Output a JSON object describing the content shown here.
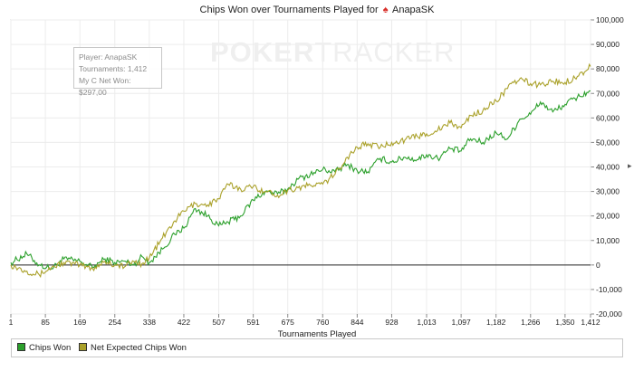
{
  "chart_data": {
    "type": "line",
    "title": "Chips Won over Tournaments Played for",
    "player_badge_icon": "pokerstars-logo-icon",
    "player_name": "AnapaSK",
    "xlabel": "Tournaments Played",
    "ylabel": "",
    "xlim": [
      1,
      1412
    ],
    "ylim": [
      -20000,
      100000
    ],
    "x_ticks": [
      1,
      85,
      169,
      254,
      338,
      422,
      507,
      591,
      675,
      760,
      844,
      928,
      1013,
      1097,
      1182,
      1266,
      1350,
      1412
    ],
    "x_tick_labels": [
      "1",
      "85",
      "169",
      "254",
      "338",
      "422",
      "507",
      "591",
      "675",
      "760",
      "844",
      "928",
      "1,013",
      "1,097",
      "1,182",
      "1,266",
      "1,350",
      "1,412"
    ],
    "y_ticks": [
      -20000,
      -10000,
      0,
      10000,
      20000,
      30000,
      40000,
      50000,
      60000,
      70000,
      80000,
      90000,
      100000
    ],
    "y_tick_labels": [
      "-20,000",
      "-10,000",
      "0",
      "10,000",
      "20,000",
      "30,000",
      "40,000",
      "50,000",
      "60,000",
      "70,000",
      "80,000",
      "90,000",
      "100,000"
    ],
    "grid": true,
    "legend_position": "bottom",
    "series": [
      {
        "name": "Chips Won",
        "color": "#2ca02c",
        "x": [
          1,
          40,
          70,
          100,
          130,
          169,
          200,
          230,
          254,
          280,
          300,
          320,
          338,
          370,
          400,
          422,
          450,
          480,
          507,
          530,
          560,
          591,
          620,
          650,
          675,
          700,
          730,
          760,
          790,
          820,
          844,
          870,
          900,
          928,
          960,
          990,
          1013,
          1040,
          1070,
          1097,
          1120,
          1150,
          1182,
          1210,
          1240,
          1266,
          1290,
          1320,
          1350,
          1380,
          1412
        ],
        "y": [
          1000,
          4500,
          0,
          -1500,
          2500,
          1500,
          -1000,
          2500,
          1000,
          1500,
          0,
          3500,
          1000,
          6500,
          12500,
          15000,
          23000,
          20000,
          16000,
          17500,
          20000,
          26500,
          30000,
          29000,
          31000,
          35000,
          37000,
          39000,
          38000,
          41000,
          38500,
          38000,
          43500,
          42000,
          44000,
          43000,
          45000,
          43500,
          47500,
          46500,
          51500,
          50000,
          54000,
          51500,
          59500,
          61500,
          66500,
          62500,
          65500,
          68500,
          71000
        ]
      },
      {
        "name": "Net Expected Chips Won",
        "color": "#aaa12a",
        "x": [
          1,
          40,
          70,
          100,
          130,
          169,
          200,
          230,
          254,
          280,
          300,
          320,
          338,
          370,
          400,
          422,
          450,
          480,
          507,
          530,
          560,
          591,
          620,
          650,
          675,
          700,
          730,
          760,
          790,
          820,
          844,
          870,
          900,
          928,
          960,
          990,
          1013,
          1040,
          1070,
          1097,
          1120,
          1150,
          1182,
          1210,
          1240,
          1266,
          1290,
          1320,
          1350,
          1380,
          1412
        ],
        "y": [
          0,
          -2500,
          -4000,
          -1000,
          1000,
          0,
          -1500,
          1500,
          0,
          -500,
          1500,
          500,
          3000,
          11000,
          18000,
          22000,
          25000,
          24500,
          27000,
          33000,
          31000,
          32000,
          30000,
          28500,
          30500,
          31500,
          32500,
          33000,
          37000,
          44000,
          48000,
          49500,
          48000,
          50000,
          51000,
          52500,
          53500,
          55000,
          58000,
          56000,
          61000,
          63000,
          67000,
          72000,
          76000,
          74000,
          73500,
          75000,
          74500,
          77000,
          81000
        ]
      }
    ],
    "info_box": {
      "player": "Player: AnapaSK",
      "tournaments": "Tournaments: 1,412",
      "net_won": "My C Net Won: $297,00"
    },
    "watermark": {
      "part1": "POKER",
      "part2": "TRACKER"
    }
  }
}
